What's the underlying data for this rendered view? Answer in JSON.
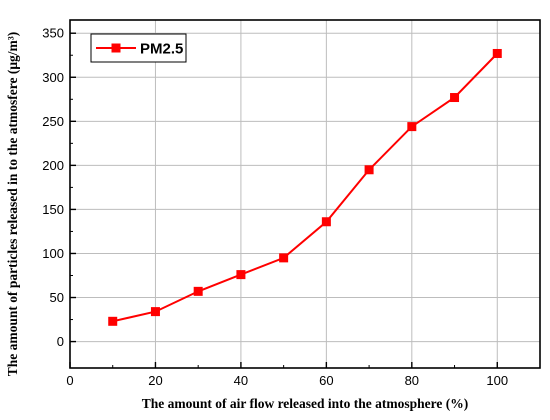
{
  "chart_data": {
    "type": "line",
    "xlabel": "The amount of air flow released into the atmosphere (%)",
    "ylabel": "The amount of particles released in to the atmosfere (μg/m³)",
    "xlim": [
      0,
      110
    ],
    "ylim": [
      -30,
      365
    ],
    "x_ticks": [
      0,
      20,
      40,
      60,
      80,
      100
    ],
    "y_ticks": [
      0,
      50,
      100,
      150,
      200,
      250,
      300,
      350
    ],
    "grid": true,
    "legend_position": "top-left",
    "series": [
      {
        "name": "PM2.5",
        "color": "#ff0000",
        "marker": "square",
        "x": [
          10,
          20,
          30,
          40,
          50,
          60,
          70,
          80,
          90,
          100
        ],
        "y": [
          23,
          34,
          57,
          76,
          95,
          136,
          195,
          244,
          277,
          327
        ]
      }
    ]
  }
}
